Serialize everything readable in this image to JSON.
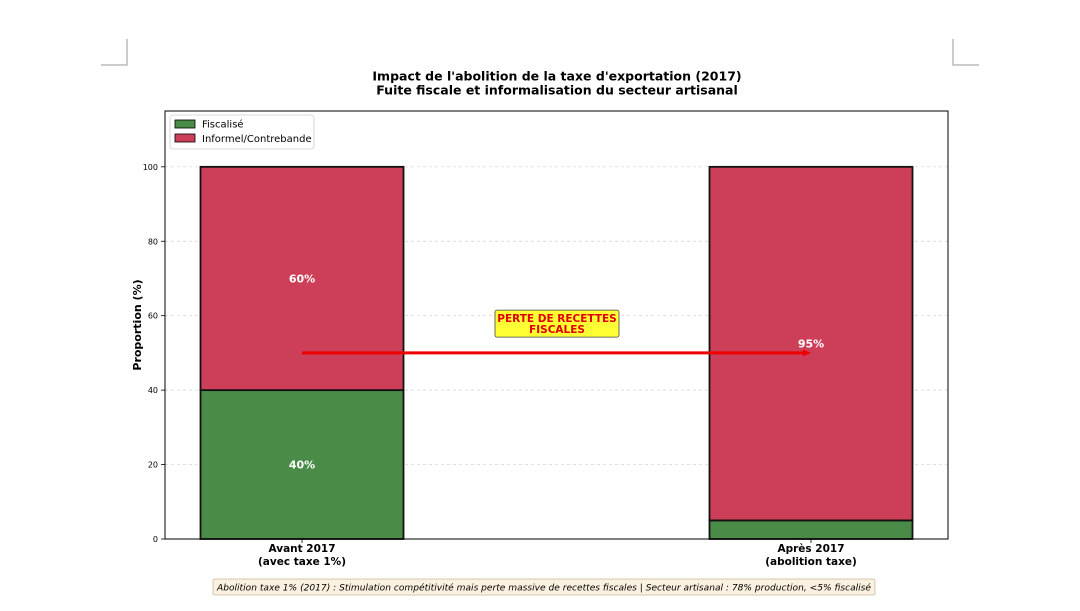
{
  "chart_data": {
    "type": "bar",
    "stacked": true,
    "title_line1": "Impact de l'abolition de la taxe d'exportation (2017)",
    "title_line2": "Fuite fiscale et informalisation du secteur artisanal",
    "ylabel": "Proportion (%)",
    "ylim": [
      0,
      115
    ],
    "yticks": [
      0,
      20,
      40,
      60,
      80,
      100
    ],
    "grid": true,
    "legend_position": "top-left",
    "categories": [
      {
        "line1": "Avant 2017",
        "line2": "(avec taxe 1%)"
      },
      {
        "line1": "Après 2017",
        "line2": "(abolition taxe)"
      }
    ],
    "series": [
      {
        "name": "Fiscalisé",
        "color": "#4a8c47",
        "values": [
          40,
          5
        ]
      },
      {
        "name": "Informel/Contrebande",
        "color": "#cd3f59",
        "values": [
          60,
          95
        ]
      }
    ],
    "data_labels": [
      {
        "text": "60%",
        "category": 0,
        "y": 70
      },
      {
        "text": "40%",
        "category": 0,
        "y": 20
      },
      {
        "text": "95%",
        "category": 1,
        "y": 52.5
      }
    ],
    "annotation": {
      "line1": "PERTE DE RECETTES",
      "line2": "FISCALES",
      "arrow_from": {
        "category": 0,
        "y": 50
      },
      "arrow_to": {
        "category": 1,
        "y": 50
      },
      "text_y": 58,
      "text_color": "#e00000",
      "box_color": "#ffff33",
      "arrow_color": "#ee0000"
    },
    "footnote": "Abolition taxe 1% (2017) : Stimulation compétitivité mais perte massive de recettes fiscales | Secteur artisanal : 78% production, <5% fiscalisé"
  }
}
